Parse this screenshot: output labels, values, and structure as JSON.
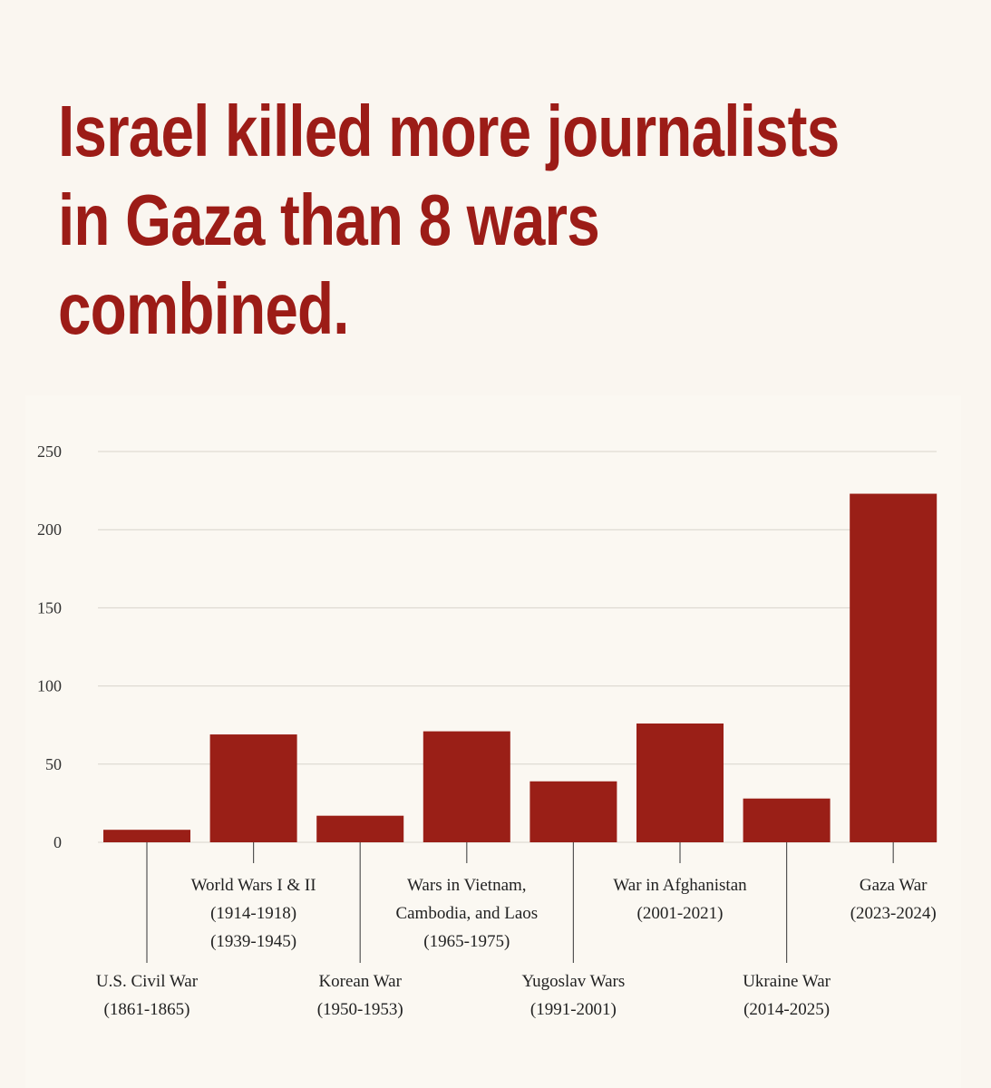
{
  "headline": {
    "lines": [
      "Israel killed more journalists",
      "in Gaza than 8 wars",
      "combined."
    ]
  },
  "colors": {
    "background": "#faf6f0",
    "headline": "#9c1c17",
    "bar": "#9a1f17",
    "grid": "#d8d4cc",
    "leader": "#555555"
  },
  "chart_data": {
    "type": "bar",
    "title": "",
    "xlabel": "",
    "ylabel": "",
    "ylim": [
      0,
      250
    ],
    "yticks": [
      0,
      50,
      100,
      150,
      200,
      250
    ],
    "grid": true,
    "categories": [
      {
        "lines": [
          "U.S. Civil War",
          "(1861-1865)"
        ],
        "label_level": "low"
      },
      {
        "lines": [
          "World Wars I & II",
          "(1914-1918)",
          "(1939-1945)"
        ],
        "label_level": "high"
      },
      {
        "lines": [
          "Korean War",
          "(1950-1953)"
        ],
        "label_level": "low"
      },
      {
        "lines": [
          "Wars in Vietnam,",
          "Cambodia, and Laos",
          "(1965-1975)"
        ],
        "label_level": "high"
      },
      {
        "lines": [
          "Yugoslav Wars",
          "(1991-2001)"
        ],
        "label_level": "low"
      },
      {
        "lines": [
          "War in Afghanistan",
          "(2001-2021)"
        ],
        "label_level": "high"
      },
      {
        "lines": [
          "Ukraine War",
          "(2014-2025)"
        ],
        "label_level": "low"
      },
      {
        "lines": [
          "Gaza War",
          "(2023-2024)"
        ],
        "label_level": "high"
      }
    ],
    "values": [
      8,
      69,
      17,
      71,
      39,
      76,
      28,
      223
    ]
  }
}
